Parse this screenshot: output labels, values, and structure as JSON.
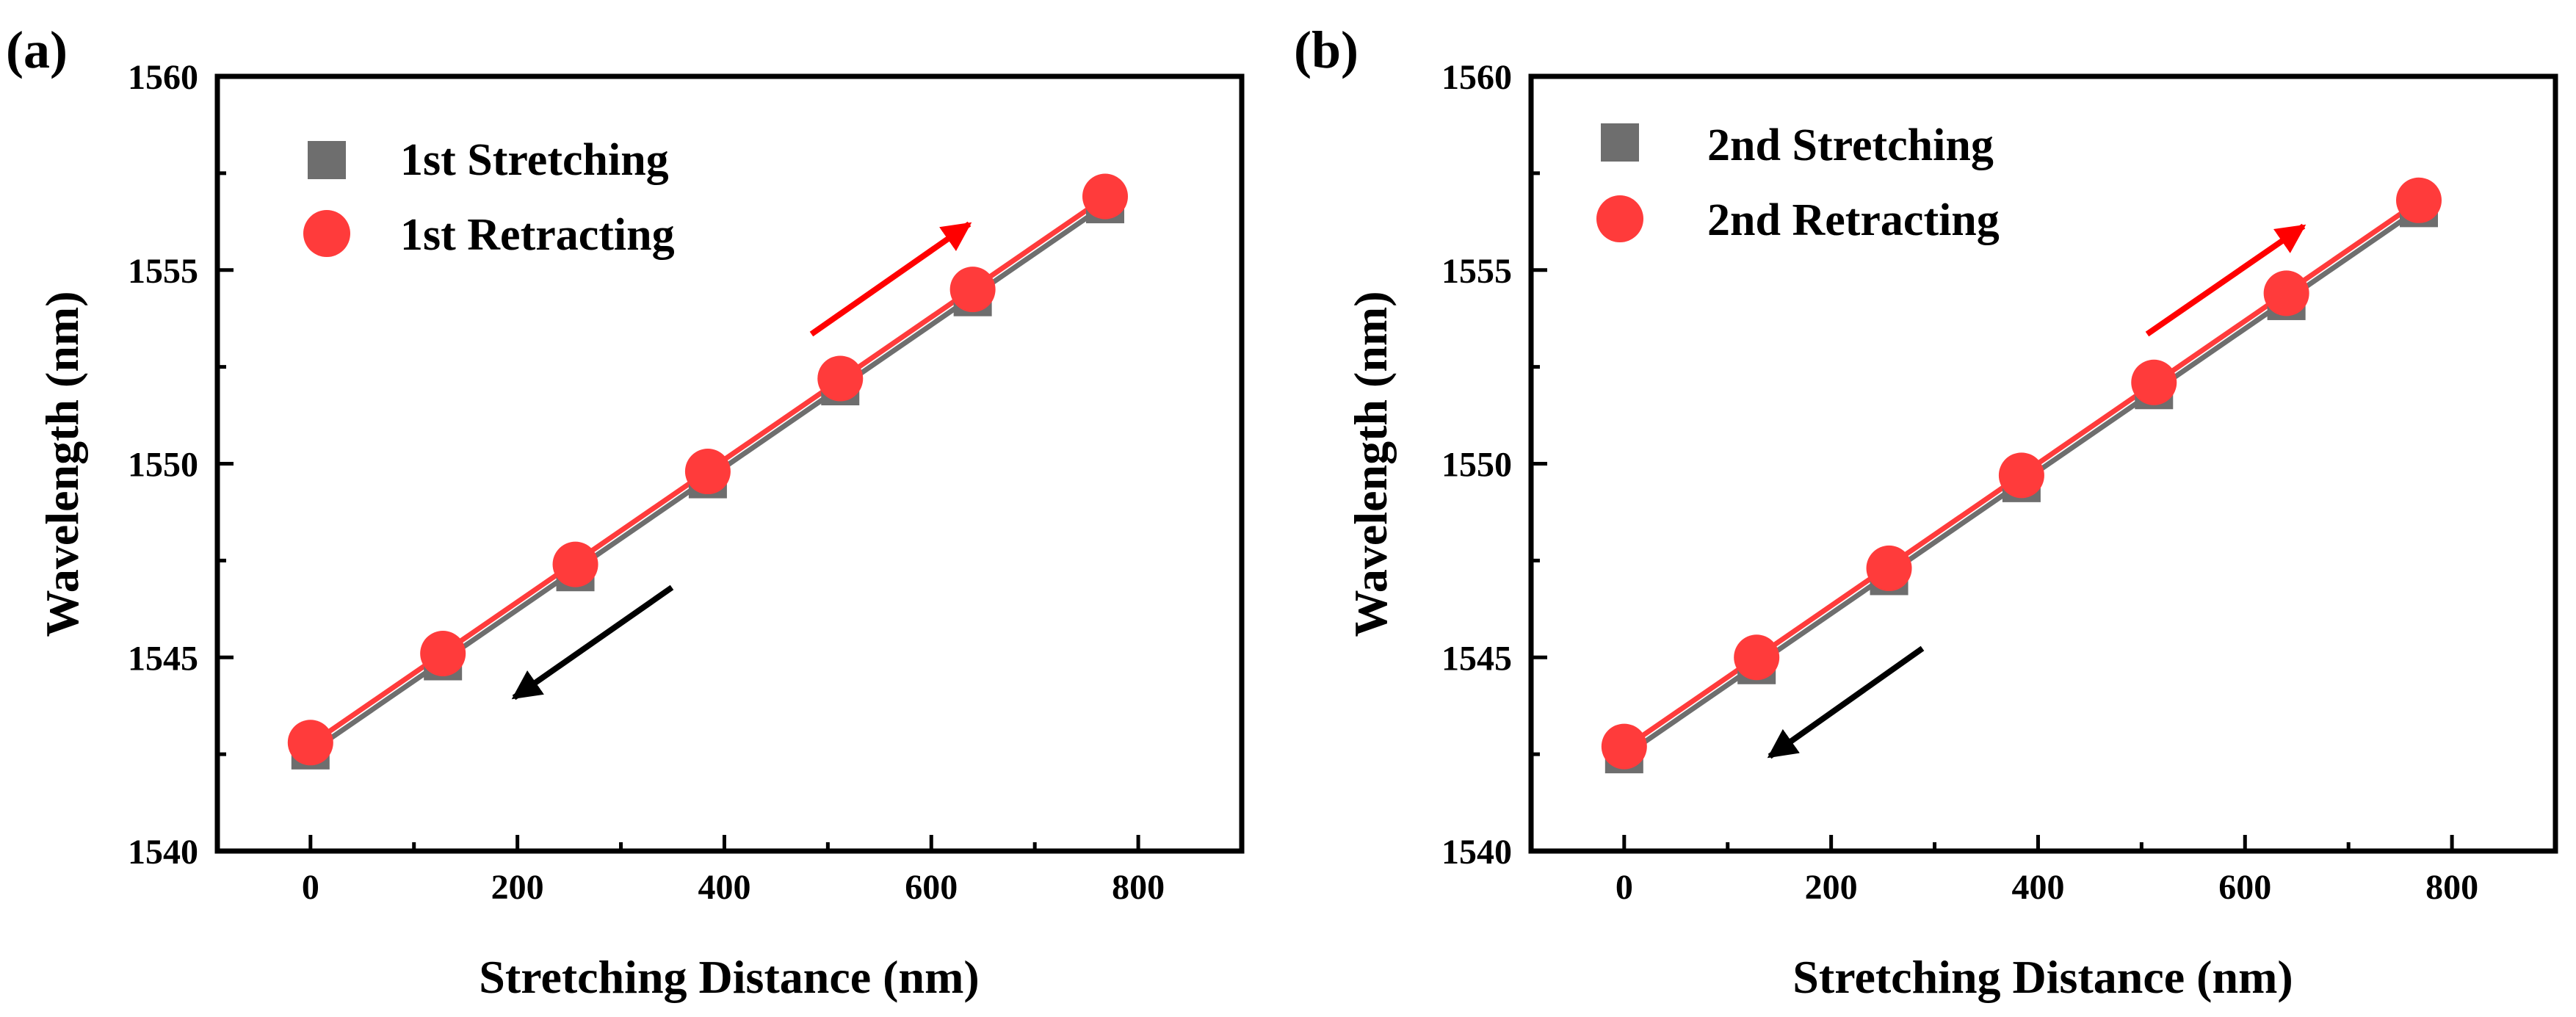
{
  "chart_data": [
    {
      "type": "scatter",
      "panel_label": "(a)",
      "xlabel": "Stretching Distance (nm)",
      "ylabel": "Wavelength (nm)",
      "xlim": [
        -90,
        900
      ],
      "ylim": [
        1540,
        1560
      ],
      "xticks": [
        "0",
        "200",
        "400",
        "600",
        "800"
      ],
      "yticks": [
        "1540",
        "1545",
        "1550",
        "1555",
        "1560"
      ],
      "xtick_values": [
        0,
        200,
        400,
        600,
        800
      ],
      "ytick_values": [
        1540,
        1545,
        1550,
        1555,
        1560
      ],
      "legend_position": "top-left",
      "series": [
        {
          "name": "1st Stretching",
          "marker": "square",
          "color": "#6e6e6e",
          "x": [
            0,
            128,
            256,
            384,
            512,
            640,
            768
          ],
          "values": [
            1542.6,
            1544.9,
            1547.2,
            1549.6,
            1552.0,
            1554.3,
            1556.7
          ]
        },
        {
          "name": "1st Retracting",
          "marker": "circle",
          "color": "#ff3b3b",
          "x": [
            0,
            128,
            256,
            384,
            512,
            640,
            768
          ],
          "values": [
            1542.8,
            1545.1,
            1547.4,
            1549.8,
            1552.2,
            1554.5,
            1556.9
          ]
        }
      ],
      "arrows": [
        {
          "direction": "increasing",
          "color": "#ff0000"
        },
        {
          "direction": "decreasing",
          "color": "#000000"
        }
      ]
    },
    {
      "type": "scatter",
      "panel_label": "(b)",
      "xlabel": "Stretching Distance (nm)",
      "ylabel": "Wavelength (nm)",
      "xlim": [
        -90,
        900
      ],
      "ylim": [
        1540,
        1560
      ],
      "xticks": [
        "0",
        "200",
        "400",
        "600",
        "800"
      ],
      "yticks": [
        "1540",
        "1545",
        "1550",
        "1555",
        "1560"
      ],
      "xtick_values": [
        0,
        200,
        400,
        600,
        800
      ],
      "ytick_values": [
        1540,
        1545,
        1550,
        1555,
        1560
      ],
      "legend_position": "top-left",
      "series": [
        {
          "name": "2nd Stretching",
          "marker": "square",
          "color": "#6e6e6e",
          "x": [
            0,
            128,
            256,
            384,
            512,
            640,
            768
          ],
          "values": [
            1542.5,
            1544.8,
            1547.1,
            1549.5,
            1551.9,
            1554.2,
            1556.6
          ]
        },
        {
          "name": "2nd Retracting",
          "marker": "circle",
          "color": "#ff3b3b",
          "x": [
            0,
            128,
            256,
            384,
            512,
            640,
            768
          ],
          "values": [
            1542.7,
            1545.0,
            1547.3,
            1549.7,
            1552.1,
            1554.4,
            1556.8
          ]
        }
      ],
      "arrows": [
        {
          "direction": "increasing",
          "color": "#ff0000"
        },
        {
          "direction": "decreasing",
          "color": "#000000"
        }
      ]
    }
  ]
}
